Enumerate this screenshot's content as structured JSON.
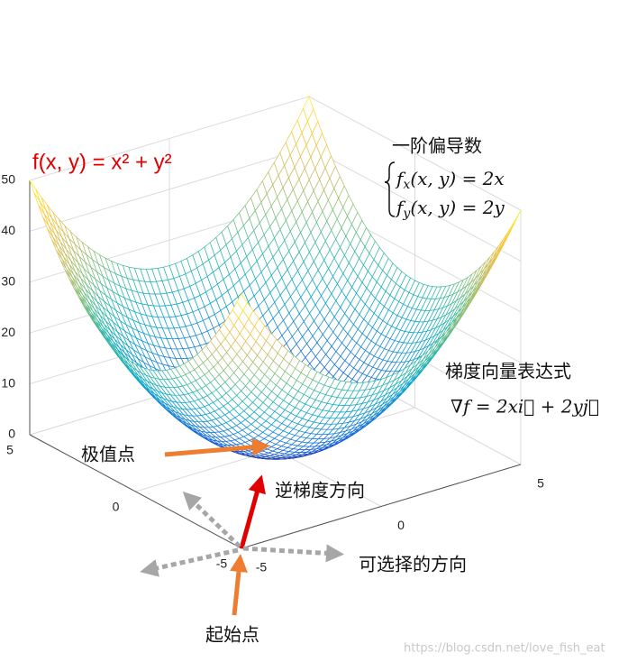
{
  "chart_data": {
    "type": "surface",
    "title": "f(x, y) = x² + y²",
    "xlim": [
      -5,
      5
    ],
    "xticks": [
      -5,
      0,
      5
    ],
    "ylim": [
      -5,
      5
    ],
    "yticks": [
      -5,
      0,
      5
    ],
    "zlim": [
      0,
      50
    ],
    "zticks": [
      0,
      10,
      20,
      30,
      40,
      50
    ],
    "grid": true,
    "annotations": {
      "partials_title": "一阶偏导数",
      "partials": [
        {
          "base": "f",
          "sub": "x",
          "rest": "(x, y) = 2x"
        },
        {
          "base": "f",
          "sub": "y",
          "rest": "(x, y) = 2y"
        }
      ],
      "gradient_title": "梯度向量表达式",
      "gradient": "∇f = 2xi⃗ + 2yj⃗",
      "extremum": "极值点",
      "negative_gradient": "逆梯度方向",
      "options": "可选择的方向",
      "start": "起始点"
    },
    "watermark": "https://blog.csdn.net/love_fish_eat"
  }
}
